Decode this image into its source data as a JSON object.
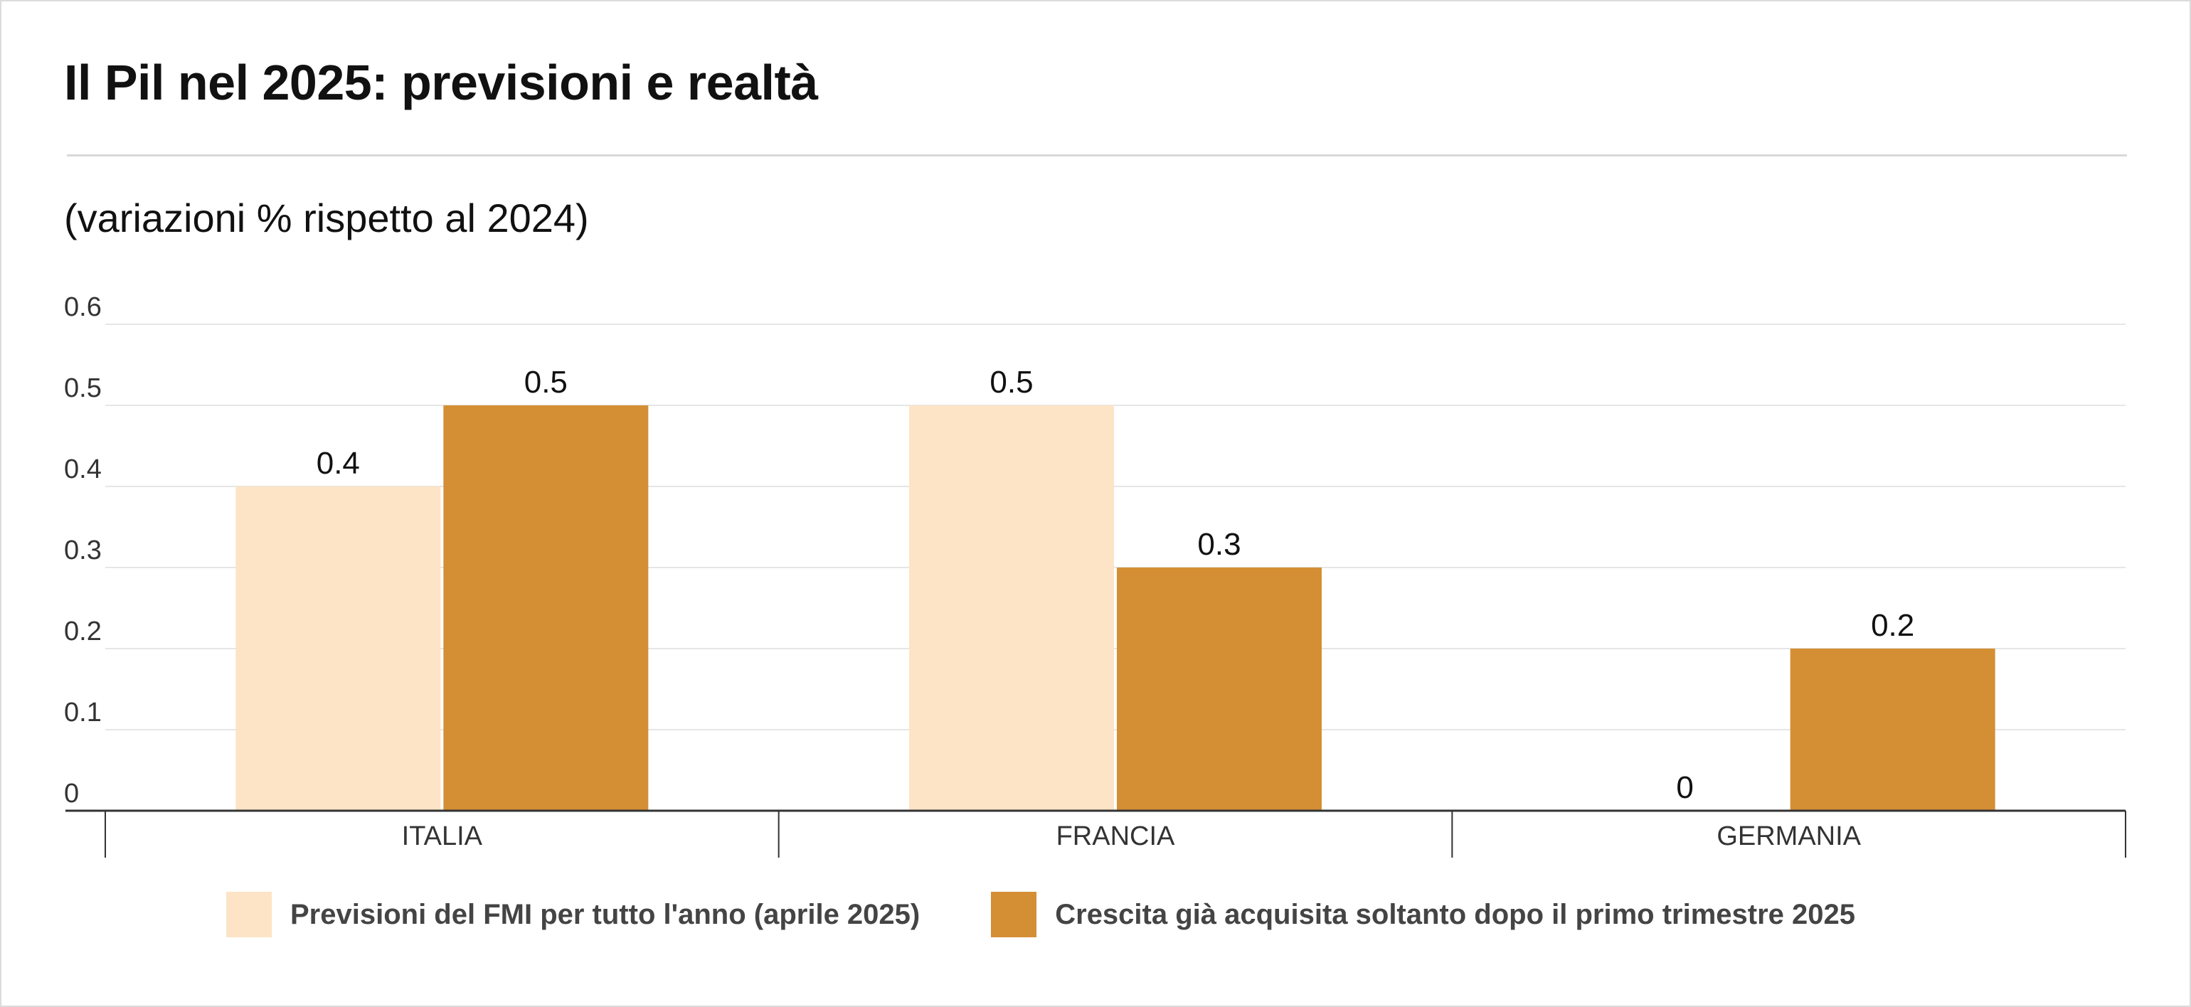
{
  "title": "Il Pil nel 2025: previsioni e realtà",
  "subtitle": "(variazioni % rispetto al 2024)",
  "legend": [
    {
      "label": "Previsioni del FMI per tutto l'anno (aprile 2025)",
      "color": "#fde4c6"
    },
    {
      "label": "Crescita già acquisita soltanto dopo il primo trimestre 2025",
      "color": "#d48f34"
    }
  ],
  "chart_data": {
    "type": "bar",
    "categories": [
      "ITALIA",
      "FRANCIA",
      "GERMANIA"
    ],
    "series": [
      {
        "name": "Previsioni del FMI per tutto l'anno (aprile 2025)",
        "values": [
          0.4,
          0.5,
          0
        ],
        "color": "#fde4c6"
      },
      {
        "name": "Crescita già acquisita soltanto dopo il primo trimestre 2025",
        "values": [
          0.5,
          0.3,
          0.2
        ],
        "color": "#d48f34"
      }
    ],
    "value_labels": [
      [
        "0.4",
        "0.5",
        "0"
      ],
      [
        "0.5",
        "0.3",
        "0.2"
      ]
    ],
    "yticks": [
      "0",
      "0.1",
      "0.2",
      "0.3",
      "0.4",
      "0.5",
      "0.6"
    ],
    "ylim": [
      0,
      0.6
    ],
    "grid": true,
    "legend_position": "bottom"
  }
}
